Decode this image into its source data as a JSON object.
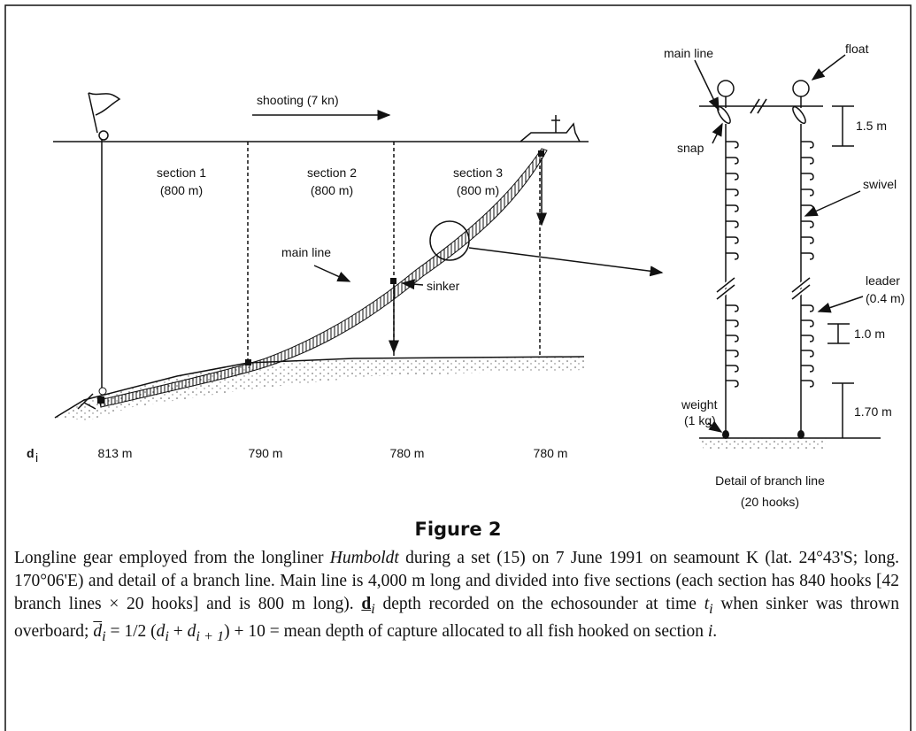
{
  "diagram": {
    "shooting": "shooting (7 kn)",
    "sections": [
      [
        "section 1",
        "(800 m)"
      ],
      [
        "section 2",
        "(800 m)"
      ],
      [
        "section 3",
        "(800 m)"
      ]
    ],
    "main_line": "main line",
    "sinker": "sinker",
    "depth_symbol": [
      "d",
      "i"
    ],
    "depths": [
      "813 m",
      "790 m",
      "780 m",
      "780 m"
    ]
  },
  "detail": {
    "main_line": "main line",
    "float": "float",
    "snap": "snap",
    "spacing_top": "1.5 m",
    "swivel": "swivel",
    "leader": [
      "leader",
      "(0.4 m)"
    ],
    "spacing_hook": "1.0 m",
    "weight": [
      "weight",
      "(1 kg)"
    ],
    "spacing_bottom": "1.70 m",
    "title": [
      "Detail of branch line",
      "(20 hooks)"
    ]
  },
  "figure": {
    "label": "Figure 2",
    "caption": [
      "Longline gear employed from the longliner ",
      "Humboldt",
      " during a set (15) on 7 June 1991 on seamount K (lat. 24°43'S; long. 170°06'E) and detail of a branch line. Main line is 4,000 m long and divided into five sections (each section has 840 hooks [42 branch lines × 20 hooks] and is 800 m long). ",
      "d",
      "i",
      " depth recorded on the echosounder at time ",
      "t",
      "i",
      " when sinker was thrown overboard; ",
      "d",
      "i",
      " = 1/2 (",
      "d",
      "i",
      " + ",
      "d",
      "i + 1",
      ") + 10 = mean depth of capture allocated to all fish hooked on section ",
      "i",
      "."
    ]
  }
}
